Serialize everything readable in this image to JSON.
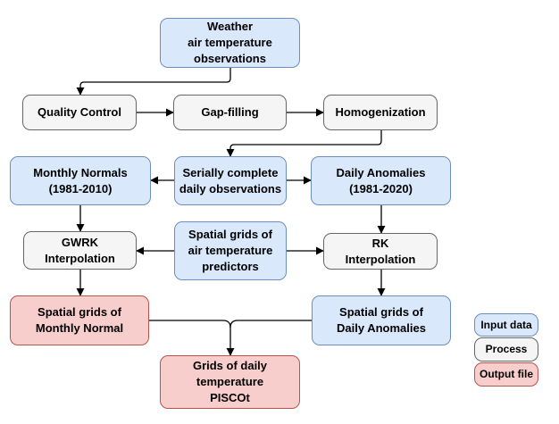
{
  "colors": {
    "input_fill": "#dae8fc",
    "input_stroke": "#6c8ebf",
    "process_fill": "#f5f5f5",
    "process_stroke": "#666666",
    "output_fill": "#f8cecc",
    "output_stroke": "#b85450",
    "arrow": "#000000"
  },
  "nodes": {
    "weather_obs": "Weather\nair temperature\nobservations",
    "quality_control": "Quality Control",
    "gap_filling": "Gap-filling",
    "homogenization": "Homogenization",
    "monthly_normals": "Monthly Normals\n(1981-2010)",
    "serially_complete": "Serially complete\ndaily observations",
    "daily_anomalies": "Daily Anomalies\n(1981-2020)",
    "gwrk": "GWRK\nInterpolation",
    "spatial_predictors": "Spatial grids of\nair temperature\npredictors",
    "rk": "RK\nInterpolation",
    "grids_monthly_normal": "Spatial grids of\nMonthly Normal",
    "grids_daily_anomalies": "Spatial grids of\nDaily Anomalies",
    "pisco_output": "Grids of daily\ntemperature\nPISCOt"
  },
  "legend": {
    "input": "Input data",
    "process": "Process",
    "output": "Output file"
  }
}
